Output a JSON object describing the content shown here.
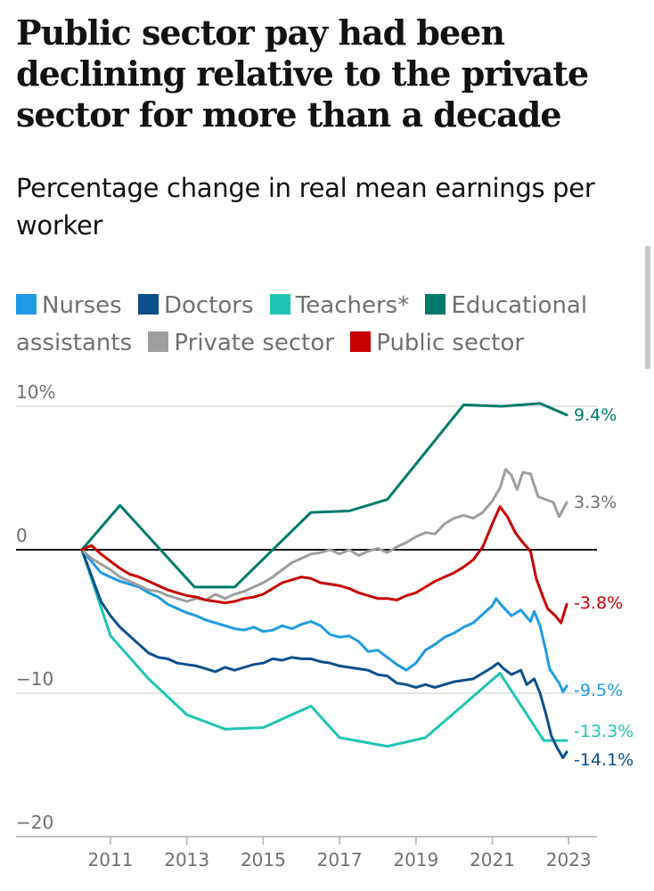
{
  "title": "Public sector pay had been declining relative to the private sector for more than a decade",
  "subtitle": "Percentage change in real mean earnings per worker",
  "chart_data": {
    "type": "line",
    "title": "Public sector pay had been declining relative to the private sector for more than a decade",
    "subtitle": "Percentage change in real mean earnings per worker",
    "xlabel": "",
    "ylabel": "",
    "xlim": [
      2010.2,
      2023.2
    ],
    "ylim": [
      -20,
      10
    ],
    "x_ticks": [
      "2011",
      "2013",
      "2015",
      "2017",
      "2019",
      "2021",
      "2023"
    ],
    "y_ticks": [
      "10%",
      "0",
      "−10",
      "−20"
    ],
    "legend_position": "top",
    "series": [
      {
        "name": "Nurses",
        "color": "#1f9ae4",
        "end_label": "-9.5%",
        "points": [
          [
            2010.25,
            0
          ],
          [
            2010.5,
            -0.8
          ],
          [
            2010.75,
            -1.6
          ],
          [
            2011,
            -1.9
          ],
          [
            2011.25,
            -2.2
          ],
          [
            2011.5,
            -2.4
          ],
          [
            2011.75,
            -2.6
          ],
          [
            2012,
            -3.0
          ],
          [
            2012.25,
            -3.3
          ],
          [
            2012.5,
            -3.8
          ],
          [
            2012.75,
            -4.1
          ],
          [
            2013,
            -4.4
          ],
          [
            2013.25,
            -4.6
          ],
          [
            2013.5,
            -4.9
          ],
          [
            2013.75,
            -5.1
          ],
          [
            2014,
            -5.3
          ],
          [
            2014.25,
            -5.5
          ],
          [
            2014.5,
            -5.6
          ],
          [
            2014.75,
            -5.4
          ],
          [
            2015,
            -5.7
          ],
          [
            2015.25,
            -5.6
          ],
          [
            2015.5,
            -5.3
          ],
          [
            2015.75,
            -5.5
          ],
          [
            2016,
            -5.2
          ],
          [
            2016.25,
            -5.0
          ],
          [
            2016.5,
            -5.3
          ],
          [
            2016.75,
            -5.9
          ],
          [
            2017,
            -6.1
          ],
          [
            2017.25,
            -6.0
          ],
          [
            2017.5,
            -6.4
          ],
          [
            2017.75,
            -7.1
          ],
          [
            2018,
            -7.0
          ],
          [
            2018.25,
            -7.5
          ],
          [
            2018.5,
            -8.0
          ],
          [
            2018.75,
            -8.4
          ],
          [
            2019,
            -7.9
          ],
          [
            2019.25,
            -7.0
          ],
          [
            2019.5,
            -6.6
          ],
          [
            2019.75,
            -6.1
          ],
          [
            2020,
            -5.8
          ],
          [
            2020.25,
            -5.4
          ],
          [
            2020.5,
            -5.1
          ],
          [
            2020.75,
            -4.5
          ],
          [
            2021,
            -3.9
          ],
          [
            2021.1,
            -3.4
          ],
          [
            2021.25,
            -3.9
          ],
          [
            2021.5,
            -4.6
          ],
          [
            2021.75,
            -4.2
          ],
          [
            2022,
            -5.0
          ],
          [
            2022.1,
            -4.3
          ],
          [
            2022.25,
            -5.3
          ],
          [
            2022.4,
            -7.0
          ],
          [
            2022.5,
            -8.3
          ],
          [
            2022.6,
            -8.7
          ],
          [
            2022.75,
            -9.3
          ],
          [
            2022.85,
            -9.9
          ],
          [
            2022.95,
            -9.5
          ]
        ]
      },
      {
        "name": "Doctors",
        "color": "#0b4f8d",
        "end_label": "-14.1%",
        "points": [
          [
            2010.25,
            0
          ],
          [
            2010.5,
            -1.8
          ],
          [
            2010.75,
            -3.6
          ],
          [
            2011,
            -4.6
          ],
          [
            2011.25,
            -5.4
          ],
          [
            2011.5,
            -6.0
          ],
          [
            2011.75,
            -6.6
          ],
          [
            2012,
            -7.2
          ],
          [
            2012.25,
            -7.5
          ],
          [
            2012.5,
            -7.6
          ],
          [
            2012.75,
            -7.9
          ],
          [
            2013,
            -8.0
          ],
          [
            2013.25,
            -8.1
          ],
          [
            2013.5,
            -8.3
          ],
          [
            2013.75,
            -8.5
          ],
          [
            2014,
            -8.2
          ],
          [
            2014.25,
            -8.4
          ],
          [
            2014.5,
            -8.2
          ],
          [
            2014.75,
            -8.0
          ],
          [
            2015,
            -7.9
          ],
          [
            2015.25,
            -7.6
          ],
          [
            2015.5,
            -7.7
          ],
          [
            2015.75,
            -7.5
          ],
          [
            2016,
            -7.6
          ],
          [
            2016.25,
            -7.6
          ],
          [
            2016.5,
            -7.8
          ],
          [
            2016.75,
            -7.9
          ],
          [
            2017,
            -8.1
          ],
          [
            2017.25,
            -8.2
          ],
          [
            2017.5,
            -8.3
          ],
          [
            2017.75,
            -8.4
          ],
          [
            2018,
            -8.7
          ],
          [
            2018.25,
            -8.8
          ],
          [
            2018.5,
            -9.3
          ],
          [
            2018.75,
            -9.4
          ],
          [
            2019,
            -9.6
          ],
          [
            2019.25,
            -9.4
          ],
          [
            2019.5,
            -9.6
          ],
          [
            2019.75,
            -9.4
          ],
          [
            2020,
            -9.2
          ],
          [
            2020.25,
            -9.1
          ],
          [
            2020.5,
            -9.0
          ],
          [
            2020.75,
            -8.6
          ],
          [
            2021,
            -8.2
          ],
          [
            2021.15,
            -7.9
          ],
          [
            2021.3,
            -8.3
          ],
          [
            2021.5,
            -8.7
          ],
          [
            2021.75,
            -8.4
          ],
          [
            2021.9,
            -9.4
          ],
          [
            2022.1,
            -9.0
          ],
          [
            2022.25,
            -10.0
          ],
          [
            2022.4,
            -11.4
          ],
          [
            2022.55,
            -13.0
          ],
          [
            2022.7,
            -13.8
          ],
          [
            2022.85,
            -14.5
          ],
          [
            2022.95,
            -14.1
          ]
        ]
      },
      {
        "name": "Teachers*",
        "color": "#1fc4b4",
        "end_label": "-13.3%",
        "points": [
          [
            2010.25,
            0
          ],
          [
            2011,
            -6.0
          ],
          [
            2012,
            -9.0
          ],
          [
            2013,
            -11.5
          ],
          [
            2014,
            -12.5
          ],
          [
            2015,
            -12.4
          ],
          [
            2016.25,
            -10.9
          ],
          [
            2017,
            -13.1
          ],
          [
            2018.25,
            -13.7
          ],
          [
            2019.25,
            -13.1
          ],
          [
            2020.25,
            -10.8
          ],
          [
            2021.2,
            -8.6
          ],
          [
            2022.35,
            -13.3
          ],
          [
            2022.95,
            -13.3
          ]
        ]
      },
      {
        "name": "Educational assistants",
        "color": "#007a6a",
        "end_label": "9.4%",
        "points": [
          [
            2010.25,
            0
          ],
          [
            2011.25,
            3.1
          ],
          [
            2013.2,
            -2.6
          ],
          [
            2014.25,
            -2.6
          ],
          [
            2016.25,
            2.6
          ],
          [
            2017.25,
            2.7
          ],
          [
            2018.25,
            3.5
          ],
          [
            2020.25,
            10.1
          ],
          [
            2021.25,
            10.0
          ],
          [
            2022.25,
            10.2
          ],
          [
            2022.95,
            9.4
          ]
        ]
      },
      {
        "name": "Private sector",
        "color": "#9e9e9e",
        "end_label": "3.3%",
        "points": [
          [
            2010.25,
            0
          ],
          [
            2010.5,
            -0.6
          ],
          [
            2010.75,
            -1.0
          ],
          [
            2011,
            -1.4
          ],
          [
            2011.25,
            -1.9
          ],
          [
            2011.5,
            -2.2
          ],
          [
            2011.75,
            -2.5
          ],
          [
            2012,
            -2.8
          ],
          [
            2012.25,
            -2.9
          ],
          [
            2012.5,
            -3.2
          ],
          [
            2012.75,
            -3.4
          ],
          [
            2013,
            -3.6
          ],
          [
            2013.25,
            -3.4
          ],
          [
            2013.5,
            -3.5
          ],
          [
            2013.75,
            -3.1
          ],
          [
            2014,
            -3.4
          ],
          [
            2014.25,
            -3.1
          ],
          [
            2014.5,
            -2.9
          ],
          [
            2014.75,
            -2.6
          ],
          [
            2015,
            -2.3
          ],
          [
            2015.25,
            -1.9
          ],
          [
            2015.5,
            -1.4
          ],
          [
            2015.75,
            -0.9
          ],
          [
            2016,
            -0.6
          ],
          [
            2016.25,
            -0.3
          ],
          [
            2016.5,
            -0.2
          ],
          [
            2016.75,
            0.0
          ],
          [
            2017,
            -0.3
          ],
          [
            2017.25,
            0.0
          ],
          [
            2017.5,
            -0.4
          ],
          [
            2017.75,
            -0.1
          ],
          [
            2018,
            0.1
          ],
          [
            2018.25,
            -0.2
          ],
          [
            2018.5,
            0.2
          ],
          [
            2018.75,
            0.5
          ],
          [
            2019,
            0.9
          ],
          [
            2019.25,
            1.2
          ],
          [
            2019.5,
            1.1
          ],
          [
            2019.75,
            1.8
          ],
          [
            2020,
            2.2
          ],
          [
            2020.25,
            2.4
          ],
          [
            2020.5,
            2.2
          ],
          [
            2020.75,
            2.6
          ],
          [
            2021,
            3.4
          ],
          [
            2021.2,
            4.3
          ],
          [
            2021.35,
            5.6
          ],
          [
            2021.5,
            5.2
          ],
          [
            2021.65,
            4.2
          ],
          [
            2021.8,
            5.4
          ],
          [
            2022,
            5.3
          ],
          [
            2022.2,
            3.7
          ],
          [
            2022.4,
            3.5
          ],
          [
            2022.6,
            3.3
          ],
          [
            2022.75,
            2.3
          ],
          [
            2022.95,
            3.3
          ]
        ]
      },
      {
        "name": "Public sector",
        "color": "#c70000",
        "end_label": "-3.8%",
        "points": [
          [
            2010.25,
            0
          ],
          [
            2010.5,
            0.3
          ],
          [
            2010.75,
            -0.3
          ],
          [
            2011,
            -0.8
          ],
          [
            2011.25,
            -1.3
          ],
          [
            2011.5,
            -1.7
          ],
          [
            2011.75,
            -1.9
          ],
          [
            2012,
            -2.2
          ],
          [
            2012.25,
            -2.5
          ],
          [
            2012.5,
            -2.8
          ],
          [
            2012.75,
            -3.0
          ],
          [
            2013,
            -3.2
          ],
          [
            2013.25,
            -3.3
          ],
          [
            2013.5,
            -3.5
          ],
          [
            2013.75,
            -3.6
          ],
          [
            2014,
            -3.7
          ],
          [
            2014.25,
            -3.6
          ],
          [
            2014.5,
            -3.4
          ],
          [
            2014.75,
            -3.3
          ],
          [
            2015,
            -3.1
          ],
          [
            2015.25,
            -2.7
          ],
          [
            2015.5,
            -2.3
          ],
          [
            2015.75,
            -2.1
          ],
          [
            2016,
            -1.9
          ],
          [
            2016.25,
            -2.0
          ],
          [
            2016.5,
            -2.3
          ],
          [
            2016.75,
            -2.4
          ],
          [
            2017,
            -2.5
          ],
          [
            2017.25,
            -2.7
          ],
          [
            2017.5,
            -3.0
          ],
          [
            2017.75,
            -3.2
          ],
          [
            2018,
            -3.4
          ],
          [
            2018.25,
            -3.4
          ],
          [
            2018.5,
            -3.5
          ],
          [
            2018.75,
            -3.2
          ],
          [
            2019,
            -3.0
          ],
          [
            2019.25,
            -2.6
          ],
          [
            2019.5,
            -2.2
          ],
          [
            2019.75,
            -1.9
          ],
          [
            2020,
            -1.6
          ],
          [
            2020.25,
            -1.2
          ],
          [
            2020.5,
            -0.7
          ],
          [
            2020.75,
            0.2
          ],
          [
            2021,
            1.8
          ],
          [
            2021.2,
            3.0
          ],
          [
            2021.4,
            2.3
          ],
          [
            2021.6,
            1.2
          ],
          [
            2021.8,
            0.5
          ],
          [
            2022,
            -0.1
          ],
          [
            2022.15,
            -2.0
          ],
          [
            2022.3,
            -3.1
          ],
          [
            2022.45,
            -4.1
          ],
          [
            2022.65,
            -4.6
          ],
          [
            2022.8,
            -5.1
          ],
          [
            2022.95,
            -3.8
          ]
        ]
      }
    ]
  }
}
